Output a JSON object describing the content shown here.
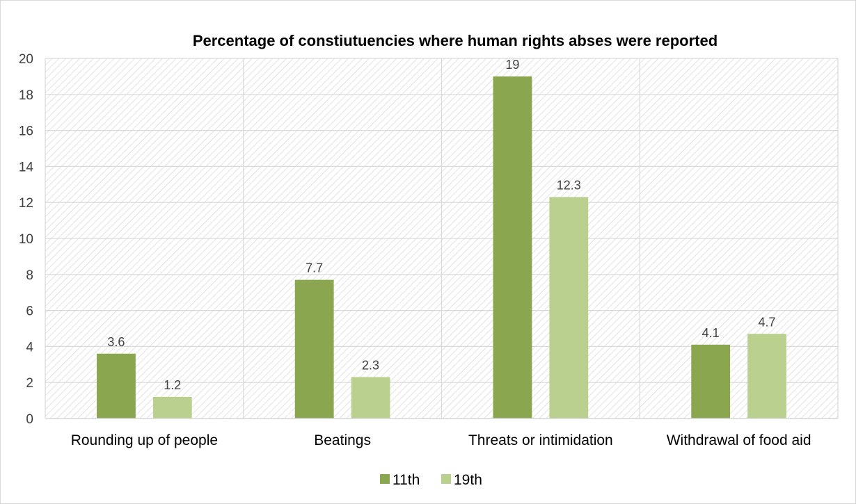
{
  "chart_data": {
    "type": "bar",
    "title": "Percentage of constiutuencies where human rights abses were reported",
    "xlabel": "",
    "ylabel": "",
    "categories": [
      "Rounding up of people",
      "Beatings",
      "Threats or intimidation",
      "Withdrawal of food aid"
    ],
    "series": [
      {
        "name": "11th",
        "values": [
          3.6,
          7.7,
          19,
          4.1
        ],
        "color": "#8aa64e"
      },
      {
        "name": "19th",
        "values": [
          1.2,
          2.3,
          12.3,
          4.7
        ],
        "color": "#b9d08f"
      }
    ],
    "ylim": [
      0,
      20
    ],
    "yticks": [
      0,
      2,
      4,
      6,
      8,
      10,
      12,
      14,
      16,
      18,
      20
    ],
    "grid": true,
    "legend_position": "bottom",
    "data_labels": true
  }
}
